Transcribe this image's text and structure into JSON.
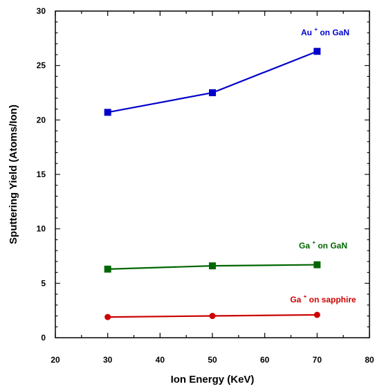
{
  "chart_data": {
    "type": "line",
    "title": "",
    "xlabel": "Ion Energy (KeV)",
    "ylabel": "Sputtering Yield (Atoms/Ion)",
    "xlim": [
      20,
      80
    ],
    "ylim": [
      0,
      30
    ],
    "xticks": [
      20,
      30,
      40,
      50,
      60,
      70,
      80
    ],
    "yticks": [
      0,
      5,
      10,
      15,
      20,
      25,
      30
    ],
    "grid": false,
    "legend": "none",
    "series": [
      {
        "label_main": "Au",
        "label_sup": "+",
        "label_rest": "on GaN",
        "color": "#0000cc",
        "marker": "square",
        "x": [
          30,
          50,
          70
        ],
        "y": [
          20.7,
          22.5,
          26.3
        ]
      },
      {
        "label_main": "Ga",
        "label_sup": "+",
        "label_rest": "on GaN",
        "color": "#006600",
        "marker": "square",
        "x": [
          30,
          50,
          70
        ],
        "y": [
          6.3,
          6.6,
          6.7
        ]
      },
      {
        "label_main": "Ga",
        "label_sup": "+",
        "label_rest": "on sapphire",
        "color": "#cc0000",
        "marker": "circle",
        "x": [
          30,
          50,
          70
        ],
        "y": [
          1.9,
          2.0,
          2.1
        ]
      }
    ]
  }
}
